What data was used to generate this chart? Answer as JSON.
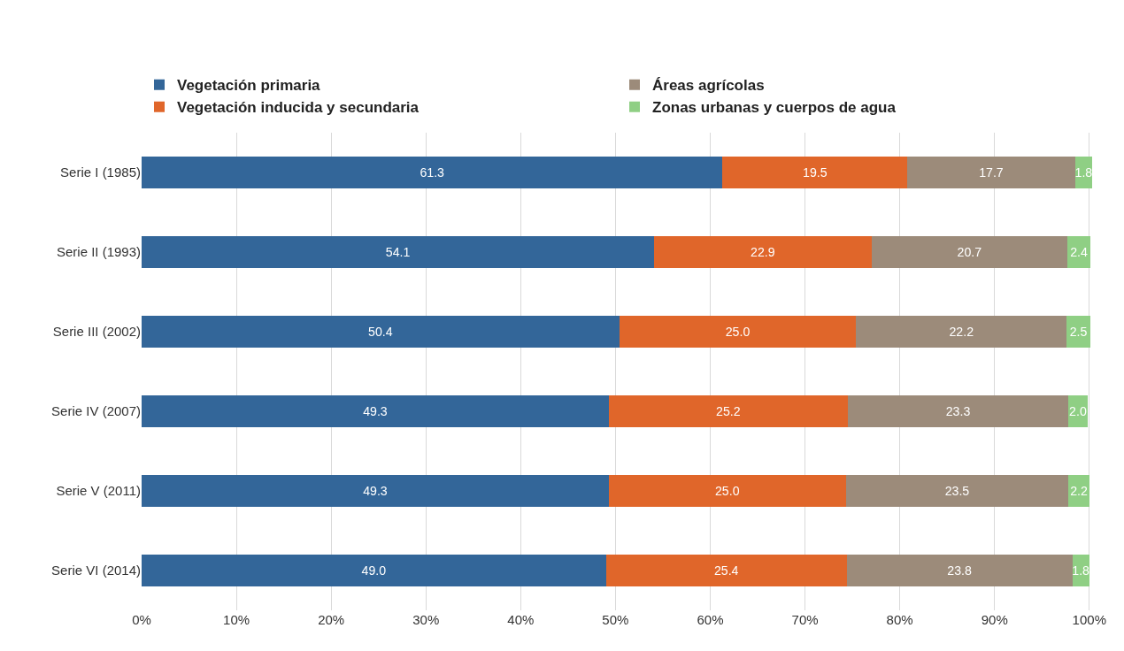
{
  "chart_data": {
    "type": "bar",
    "orientation": "horizontal",
    "stacked": true,
    "grid": "x",
    "legend": "top",
    "categories": [
      "Serie I (1985)",
      "Serie II (1993)",
      "Serie III (2002)",
      "Serie IV (2007)",
      "Serie V (2011)",
      "Serie VI (2014)"
    ],
    "series": [
      {
        "name": "Vegetación primaria",
        "color": "#336699",
        "values": [
          61.3,
          54.1,
          50.4,
          49.3,
          49.3,
          49.0
        ],
        "value_labels": [
          "61.3",
          "54.1",
          "50.4",
          "49.3",
          "49.3",
          "49.0"
        ]
      },
      {
        "name": "Vegetación inducida y secundaria",
        "color": "#e0662a",
        "values": [
          19.5,
          22.9,
          25.0,
          25.2,
          25.0,
          25.4
        ],
        "value_labels": [
          "19.5",
          "22.9",
          "25.0",
          "25.2",
          "25.0",
          "25.4"
        ]
      },
      {
        "name": "Áreas agrícolas",
        "color": "#9c8b7a",
        "values": [
          17.7,
          20.7,
          22.2,
          23.3,
          23.5,
          23.8
        ],
        "value_labels": [
          "17.7",
          "20.7",
          "22.2",
          "23.3",
          "23.5",
          "23.8"
        ]
      },
      {
        "name": "Zonas urbanas y cuerpos de agua",
        "color": "#8fcf84",
        "values": [
          1.8,
          2.4,
          2.5,
          2.0,
          2.2,
          1.8
        ],
        "value_labels": [
          "1.8",
          "2.4",
          "2.5",
          "2.0",
          "2.2",
          "1.8"
        ]
      }
    ],
    "xlim": [
      0,
      100.3
    ],
    "xticks": [
      {
        "value": 0,
        "label": "0%"
      },
      {
        "value": 10,
        "label": "10%"
      },
      {
        "value": 20,
        "label": "20%"
      },
      {
        "value": 30,
        "label": "30%"
      },
      {
        "value": 40,
        "label": "40%"
      },
      {
        "value": 50,
        "label": "50%"
      },
      {
        "value": 60,
        "label": "60%"
      },
      {
        "value": 70,
        "label": "70%"
      },
      {
        "value": 80,
        "label": "80%"
      },
      {
        "value": 90,
        "label": "90%"
      },
      {
        "value": 100,
        "label": "100%"
      }
    ]
  }
}
